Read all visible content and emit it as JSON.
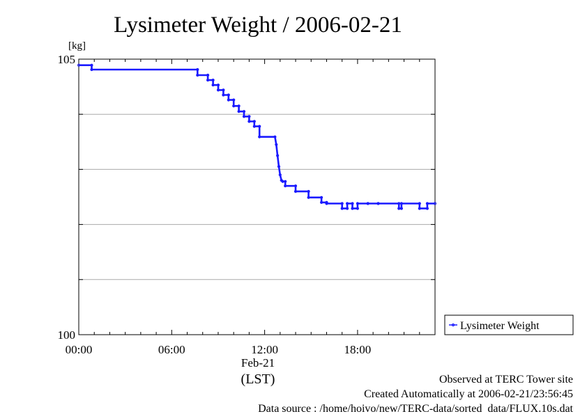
{
  "chart_data": {
    "type": "line",
    "title": "Lysimeter Weight / 2006-02-21",
    "ylabel": "[kg]",
    "xlabel": "(LST)",
    "date_label": "Feb-21",
    "ylim": [
      100,
      105
    ],
    "xlim": [
      "00:00",
      "23:00"
    ],
    "x_ticks": [
      "00:00",
      "06:00",
      "12:00",
      "18:00"
    ],
    "y_ticks": [
      "100",
      "105"
    ],
    "grid": true,
    "legend": {
      "position": "right",
      "entries": [
        "Lysimeter Weight"
      ]
    },
    "colors": {
      "series": "#1a1aff"
    },
    "series": [
      {
        "name": "Lysimeter Weight",
        "x": [
          "00:00",
          "00:50",
          "00:50",
          "07:40",
          "07:40",
          "08:20",
          "08:20",
          "08:40",
          "08:40",
          "09:00",
          "09:00",
          "09:20",
          "09:20",
          "09:40",
          "09:40",
          "10:00",
          "10:00",
          "10:20",
          "10:20",
          "10:40",
          "10:40",
          "11:00",
          "11:00",
          "11:20",
          "11:20",
          "11:40",
          "11:40",
          "12:40",
          "12:45",
          "12:50",
          "12:55",
          "13:00",
          "13:05",
          "13:10",
          "13:20",
          "13:20",
          "14:00",
          "14:00",
          "14:50",
          "14:50",
          "15:40",
          "15:40",
          "16:00",
          "16:00",
          "17:00",
          "17:00",
          "17:20",
          "17:20",
          "17:40",
          "17:40",
          "18:00",
          "18:00",
          "18:40",
          "18:40",
          "19:20",
          "19:20",
          "20:40",
          "20:40",
          "20:50",
          "20:50",
          "22:00",
          "22:00",
          "22:30",
          "22:30",
          "23:00"
        ],
        "y": [
          104.89,
          104.89,
          104.81,
          104.81,
          104.71,
          104.71,
          104.62,
          104.62,
          104.53,
          104.53,
          104.44,
          104.44,
          104.35,
          104.35,
          104.26,
          104.26,
          104.15,
          104.15,
          104.05,
          104.05,
          103.96,
          103.96,
          103.87,
          103.87,
          103.78,
          103.78,
          103.59,
          103.59,
          103.45,
          103.25,
          103.05,
          102.9,
          102.8,
          102.78,
          102.78,
          102.7,
          102.7,
          102.6,
          102.6,
          102.49,
          102.49,
          102.4,
          102.4,
          102.38,
          102.38,
          102.29,
          102.29,
          102.38,
          102.38,
          102.29,
          102.29,
          102.38,
          102.38,
          102.38,
          102.38,
          102.38,
          102.38,
          102.29,
          102.29,
          102.38,
          102.38,
          102.29,
          102.29,
          102.38,
          102.38
        ]
      }
    ]
  },
  "footer": {
    "line1": "Observed at TERC Tower site",
    "line2": "Created Automatically at 2006-02-21/23:56:45",
    "line3": "Data source : /home/hoivo/new/TERC-data/sorted  data/FLUX.10s.dat"
  }
}
